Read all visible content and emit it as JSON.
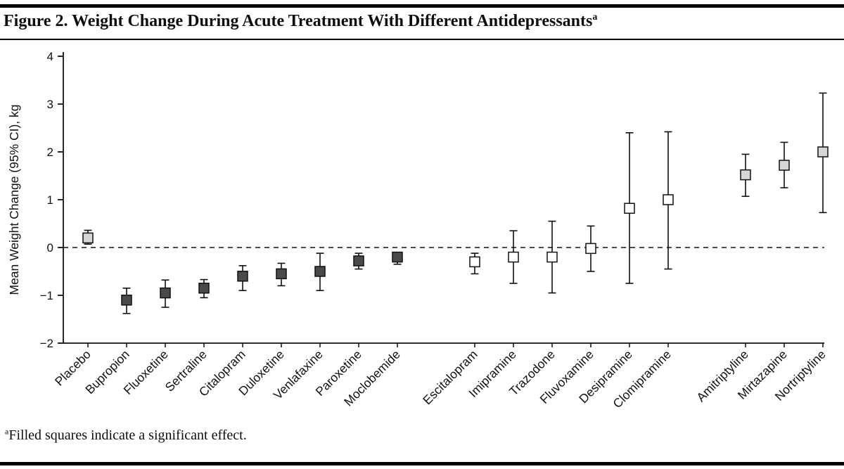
{
  "page": {
    "title": "Figure 2. Weight Change During Acute Treatment With Different Antidepressants",
    "title_superscript": "a",
    "footnote_superscript": "a",
    "footnote": "Filled squares indicate a significant effect."
  },
  "chart_data": {
    "type": "scatter",
    "subtype": "point-estimates-with-95ci-error-bars",
    "title": "Figure 2. Weight Change During Acute Treatment With Different Antidepressants",
    "xlabel": "",
    "ylabel": "Mean Weight Change (95% CI), kg",
    "ylim": [
      -2,
      4
    ],
    "yticks": [
      4,
      3,
      2,
      1,
      0,
      -1,
      -2
    ],
    "grid": false,
    "legend_position": "none",
    "zero_line": {
      "y": 0,
      "style": "dashed"
    },
    "annotation": "Filled squares indicate a significant effect.",
    "marker_colors": {
      "dark": "#4a4a4a",
      "light": "#d6d6d6",
      "open": "#ffffff"
    },
    "axis_color": "#111111",
    "points": [
      {
        "label": "Placebo",
        "slot": 0,
        "mean": 0.2,
        "ci_low": 0.07,
        "ci_high": 0.36,
        "fill": "light",
        "significant": true
      },
      {
        "label": "Bupropion",
        "slot": 1,
        "mean": -1.1,
        "ci_low": -1.38,
        "ci_high": -0.85,
        "fill": "dark",
        "significant": true
      },
      {
        "label": "Fluoxetine",
        "slot": 2,
        "mean": -0.95,
        "ci_low": -1.25,
        "ci_high": -0.68,
        "fill": "dark",
        "significant": true
      },
      {
        "label": "Sertraline",
        "slot": 3,
        "mean": -0.85,
        "ci_low": -1.05,
        "ci_high": -0.67,
        "fill": "dark",
        "significant": true
      },
      {
        "label": "Citalopram",
        "slot": 4,
        "mean": -0.6,
        "ci_low": -0.9,
        "ci_high": -0.38,
        "fill": "dark",
        "significant": true
      },
      {
        "label": "Duloxetine",
        "slot": 5,
        "mean": -0.55,
        "ci_low": -0.8,
        "ci_high": -0.33,
        "fill": "dark",
        "significant": true
      },
      {
        "label": "Venlafaxine",
        "slot": 6,
        "mean": -0.5,
        "ci_low": -0.9,
        "ci_high": -0.12,
        "fill": "dark",
        "significant": true
      },
      {
        "label": "Paroxetine",
        "slot": 7,
        "mean": -0.28,
        "ci_low": -0.45,
        "ci_high": -0.12,
        "fill": "dark",
        "significant": true
      },
      {
        "label": "Moclobemide",
        "slot": 8,
        "mean": -0.2,
        "ci_low": -0.35,
        "ci_high": -0.1,
        "fill": "dark",
        "significant": true
      },
      {
        "label": "Escitalopram",
        "slot": 10,
        "mean": -0.3,
        "ci_low": -0.55,
        "ci_high": -0.12,
        "fill": "open",
        "significant": false
      },
      {
        "label": "Imipramine",
        "slot": 11,
        "mean": -0.2,
        "ci_low": -0.75,
        "ci_high": 0.35,
        "fill": "open",
        "significant": false
      },
      {
        "label": "Trazodone",
        "slot": 12,
        "mean": -0.2,
        "ci_low": -0.95,
        "ci_high": 0.55,
        "fill": "open",
        "significant": false
      },
      {
        "label": "Fluvoxamine",
        "slot": 13,
        "mean": -0.02,
        "ci_low": -0.5,
        "ci_high": 0.45,
        "fill": "open",
        "significant": false
      },
      {
        "label": "Desipramine",
        "slot": 14,
        "mean": 0.82,
        "ci_low": -0.75,
        "ci_high": 2.4,
        "fill": "open",
        "significant": false
      },
      {
        "label": "Clomipramine",
        "slot": 15,
        "mean": 1.0,
        "ci_low": -0.45,
        "ci_high": 2.42,
        "fill": "open",
        "significant": false
      },
      {
        "label": "Amitriptyline",
        "slot": 17,
        "mean": 1.52,
        "ci_low": 1.07,
        "ci_high": 1.95,
        "fill": "light",
        "significant": true
      },
      {
        "label": "Mirtazapine",
        "slot": 18,
        "mean": 1.72,
        "ci_low": 1.25,
        "ci_high": 2.2,
        "fill": "light",
        "significant": true
      },
      {
        "label": "Nortriptyline",
        "slot": 19,
        "mean": 2.0,
        "ci_low": 0.73,
        "ci_high": 3.23,
        "fill": "light",
        "significant": true
      }
    ]
  }
}
